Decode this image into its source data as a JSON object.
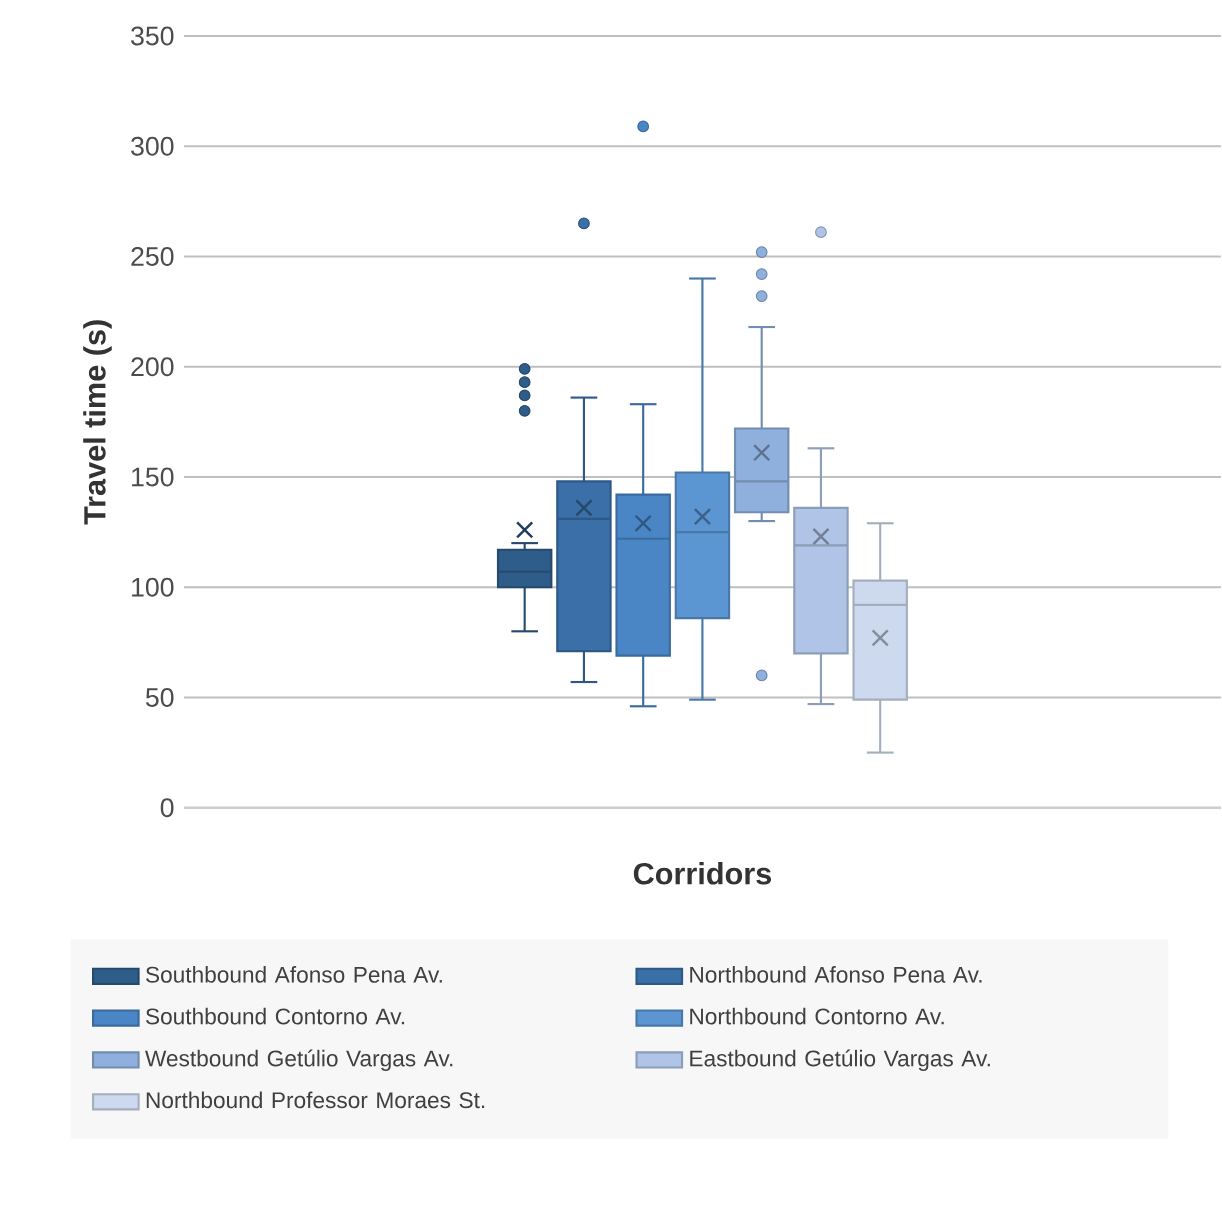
{
  "chart_data": {
    "type": "box",
    "xlabel": "Corridors",
    "ylabel": "Travel time (s)",
    "categories": [
      null
    ],
    "ylim": [
      0,
      350
    ],
    "yticks": [
      0,
      50,
      100,
      150,
      200,
      250,
      300,
      350
    ],
    "grid": "y",
    "legend": "bottom",
    "series": [
      {
        "name": "Southbound Afonso Pena Av.",
        "color": "#2f5d8a",
        "boxes": [
          {
            "low": 80,
            "q1": 100,
            "median": 107,
            "q3": 117,
            "high": 120,
            "mean": 126,
            "outliers": [
              199,
              193,
              187,
              180
            ]
          }
        ]
      },
      {
        "name": "Northbound Afonso Pena Av.",
        "color": "#3a6fa8",
        "boxes": [
          {
            "low": 57,
            "q1": 71,
            "median": 131,
            "q3": 148,
            "high": 186,
            "mean": 136,
            "outliers": [
              265
            ]
          }
        ]
      },
      {
        "name": "Southbound Contorno Av.",
        "color": "#4a86c5",
        "boxes": [
          {
            "low": 46,
            "q1": 69,
            "median": 122,
            "q3": 142,
            "high": 183,
            "mean": 129,
            "outliers": [
              309
            ]
          }
        ]
      },
      {
        "name": "Northbound Contorno Av.",
        "color": "#5b96d2",
        "boxes": [
          {
            "low": 49,
            "q1": 86,
            "median": 125,
            "q3": 152,
            "high": 240,
            "mean": 132
          }
        ]
      },
      {
        "name": "Westbound Getúlio Vargas Av.",
        "color": "#8fb0dc",
        "boxes": [
          {
            "low": 130,
            "q1": 134,
            "median": 148,
            "q3": 172,
            "high": 218,
            "mean": 161,
            "outliers": [
              252,
              242,
              232,
              60
            ]
          }
        ]
      },
      {
        "name": "Eastbound Getúlio Vargas Av.",
        "color": "#afc4e6",
        "boxes": [
          {
            "low": 47,
            "q1": 70,
            "median": 119,
            "q3": 136,
            "high": 163,
            "mean": 123,
            "outliers": [
              261
            ]
          }
        ]
      },
      {
        "name": "Northbound Professor Moraes St.",
        "color": "#cdd9ee",
        "boxes": [
          {
            "low": 25,
            "q1": 49,
            "median": 92,
            "q3": 103,
            "high": 129,
            "mean": 77
          }
        ]
      }
    ]
  }
}
